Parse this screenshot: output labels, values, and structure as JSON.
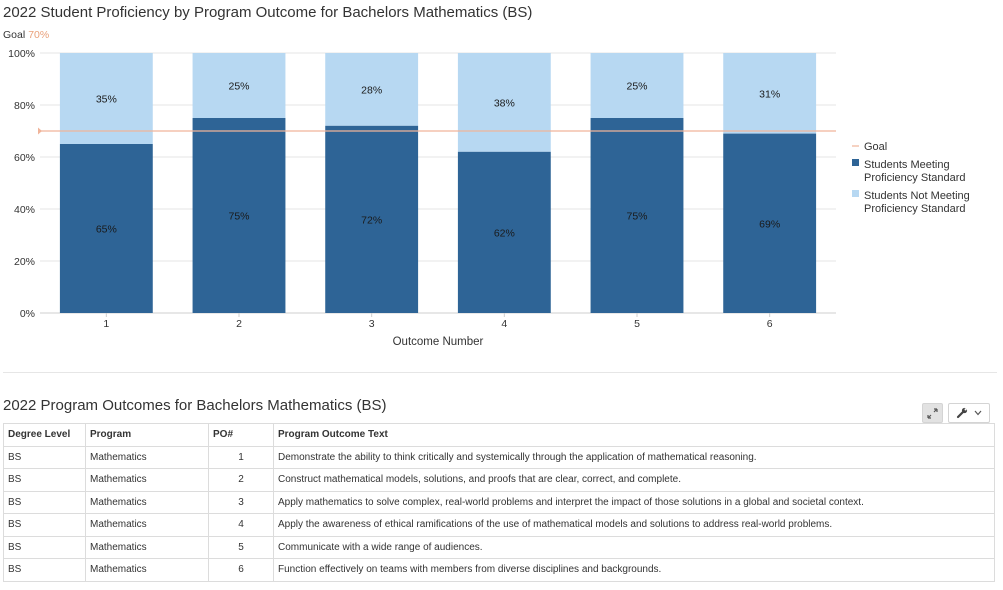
{
  "chart_data": {
    "type": "bar",
    "stacked": true,
    "title": "2022 Student Proficiency by Program Outcome for Bachelors Mathematics (BS)",
    "goal_label": "Goal",
    "goal_value_label": "70%",
    "goal": 70,
    "categories": [
      "1",
      "2",
      "3",
      "4",
      "5",
      "6"
    ],
    "xlabel": "Outcome Number",
    "ylabel": "",
    "ylim": [
      0,
      100
    ],
    "yticks": [
      "0%",
      "20%",
      "40%",
      "60%",
      "80%",
      "100%"
    ],
    "series": [
      {
        "name": "Students Meeting Proficiency Standard",
        "color": "#2e6496",
        "values": [
          65,
          75,
          72,
          62,
          75,
          69
        ],
        "labels": [
          "65%",
          "75%",
          "72%",
          "62%",
          "75%",
          "69%"
        ]
      },
      {
        "name": "Students Not Meeting Proficiency Standard",
        "color": "#b7d8f2",
        "values": [
          35,
          25,
          28,
          38,
          25,
          31
        ],
        "labels": [
          "35%",
          "25%",
          "28%",
          "38%",
          "25%",
          "31%"
        ]
      }
    ],
    "legend": {
      "position": "right",
      "items": [
        {
          "kind": "line",
          "color": "#f0b49a",
          "lines": [
            "Goal"
          ]
        },
        {
          "kind": "box",
          "color": "#2e6496",
          "lines": [
            "Students Meeting",
            "Proficiency Standard"
          ]
        },
        {
          "kind": "box",
          "color": "#b7d8f2",
          "lines": [
            "Students Not Meeting",
            "Proficiency Standard"
          ]
        }
      ]
    },
    "goal_color": "#f0b49a",
    "grid": true
  },
  "table": {
    "title": "2022 Program Outcomes for Bachelors Mathematics (BS)",
    "expand_icon": "expand-icon",
    "settings_icon": "wrench-icon",
    "headers": [
      "Degree Level",
      "Program",
      "PO#",
      "Program Outcome Text"
    ],
    "rows": [
      [
        "BS",
        "Mathematics",
        "1",
        "Demonstrate the ability to think critically and systemically through the application of mathematical reasoning."
      ],
      [
        "BS",
        "Mathematics",
        "2",
        "Construct mathematical models, solutions, and proofs that are clear, correct, and complete."
      ],
      [
        "BS",
        "Mathematics",
        "3",
        "Apply mathematics to solve complex, real-world problems and interpret the impact of those solutions in a global and societal context."
      ],
      [
        "BS",
        "Mathematics",
        "4",
        "Apply the awareness of ethical ramifications of the use of mathematical models and solutions to address real-world problems."
      ],
      [
        "BS",
        "Mathematics",
        "5",
        "Communicate with a wide range of audiences."
      ],
      [
        "BS",
        "Mathematics",
        "6",
        "Function effectively on teams with members from diverse disciplines and backgrounds."
      ]
    ]
  }
}
